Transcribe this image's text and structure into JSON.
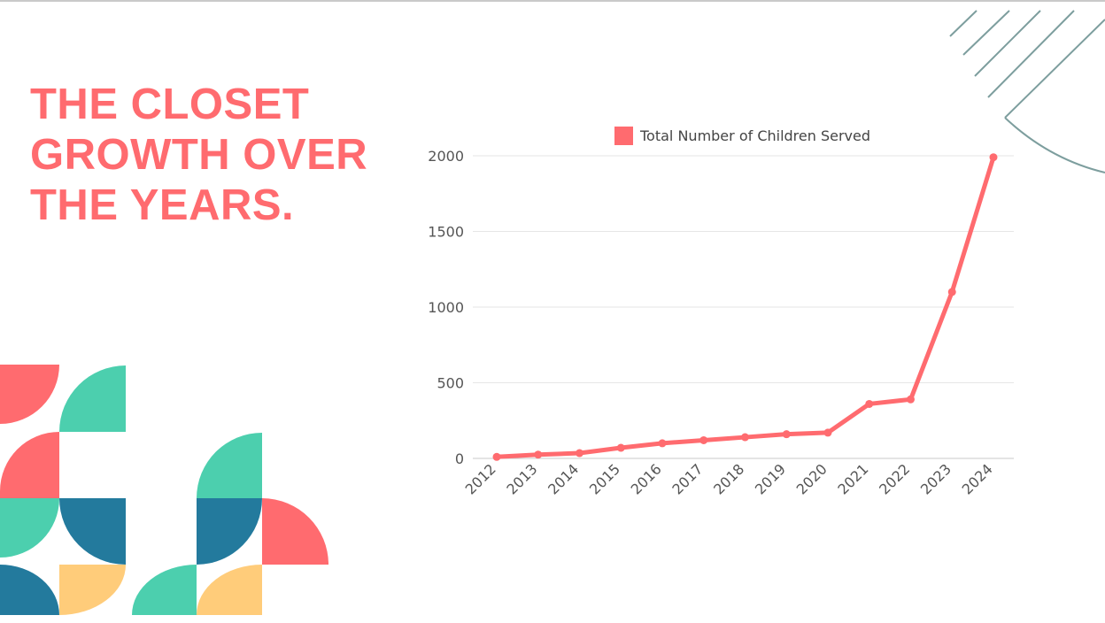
{
  "slide": {
    "title_lines": [
      "THE CLOSET",
      "GROWTH OVER",
      "THE YEARS."
    ]
  },
  "colors": {
    "accent": "#ff6b6f",
    "teal": "#4ccfae",
    "blue": "#237a9d",
    "yellow": "#ffcc7a",
    "line_decor": "#7d9e9e"
  },
  "chart_data": {
    "type": "line",
    "x": [
      "2012",
      "2013",
      "2014",
      "2015",
      "2016",
      "2017",
      "2018",
      "2019",
      "2020",
      "2021",
      "2022",
      "2023",
      "2024"
    ],
    "series": [
      {
        "name": "Total Number of Children Served",
        "values": [
          10,
          25,
          35,
          70,
          100,
          120,
          140,
          160,
          170,
          360,
          390,
          1100,
          1990
        ]
      }
    ],
    "yticks": [
      0,
      500,
      1000,
      1500,
      2000
    ],
    "ylim": [
      0,
      2000
    ],
    "grid": true,
    "legend": "top",
    "color": "#ff6b6f"
  }
}
